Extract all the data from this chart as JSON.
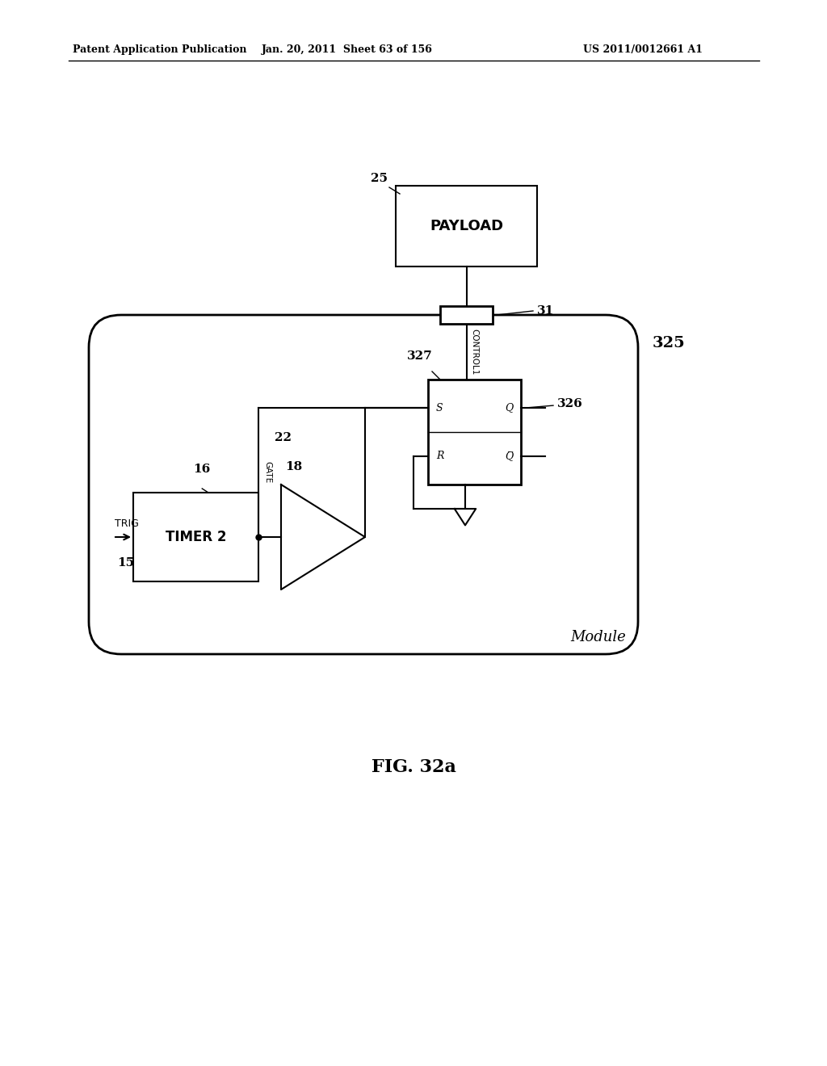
{
  "bg_color": "#ffffff",
  "header_left": "Patent Application Publication",
  "header_mid": "Jan. 20, 2011  Sheet 63 of 156",
  "header_right": "US 2011/0012661 A1",
  "caption": "FIG. 32a",
  "module_label": "Module",
  "module_num": "325",
  "payload_label": "PAYLOAD",
  "payload_num": "25",
  "connector_num": "31",
  "ff_num": "327",
  "ff_S": "S",
  "ff_R": "R",
  "ff_Q": "Q",
  "ff_Qbar": "Q",
  "control1_label": "CONTROL1",
  "control1_num": "326",
  "timer_label": "TIMER 2",
  "timer_num": "16",
  "trig_label": "TRIG",
  "trig_num": "15",
  "gate_label": "GATE",
  "gate_num": "22",
  "amp_num": "18"
}
